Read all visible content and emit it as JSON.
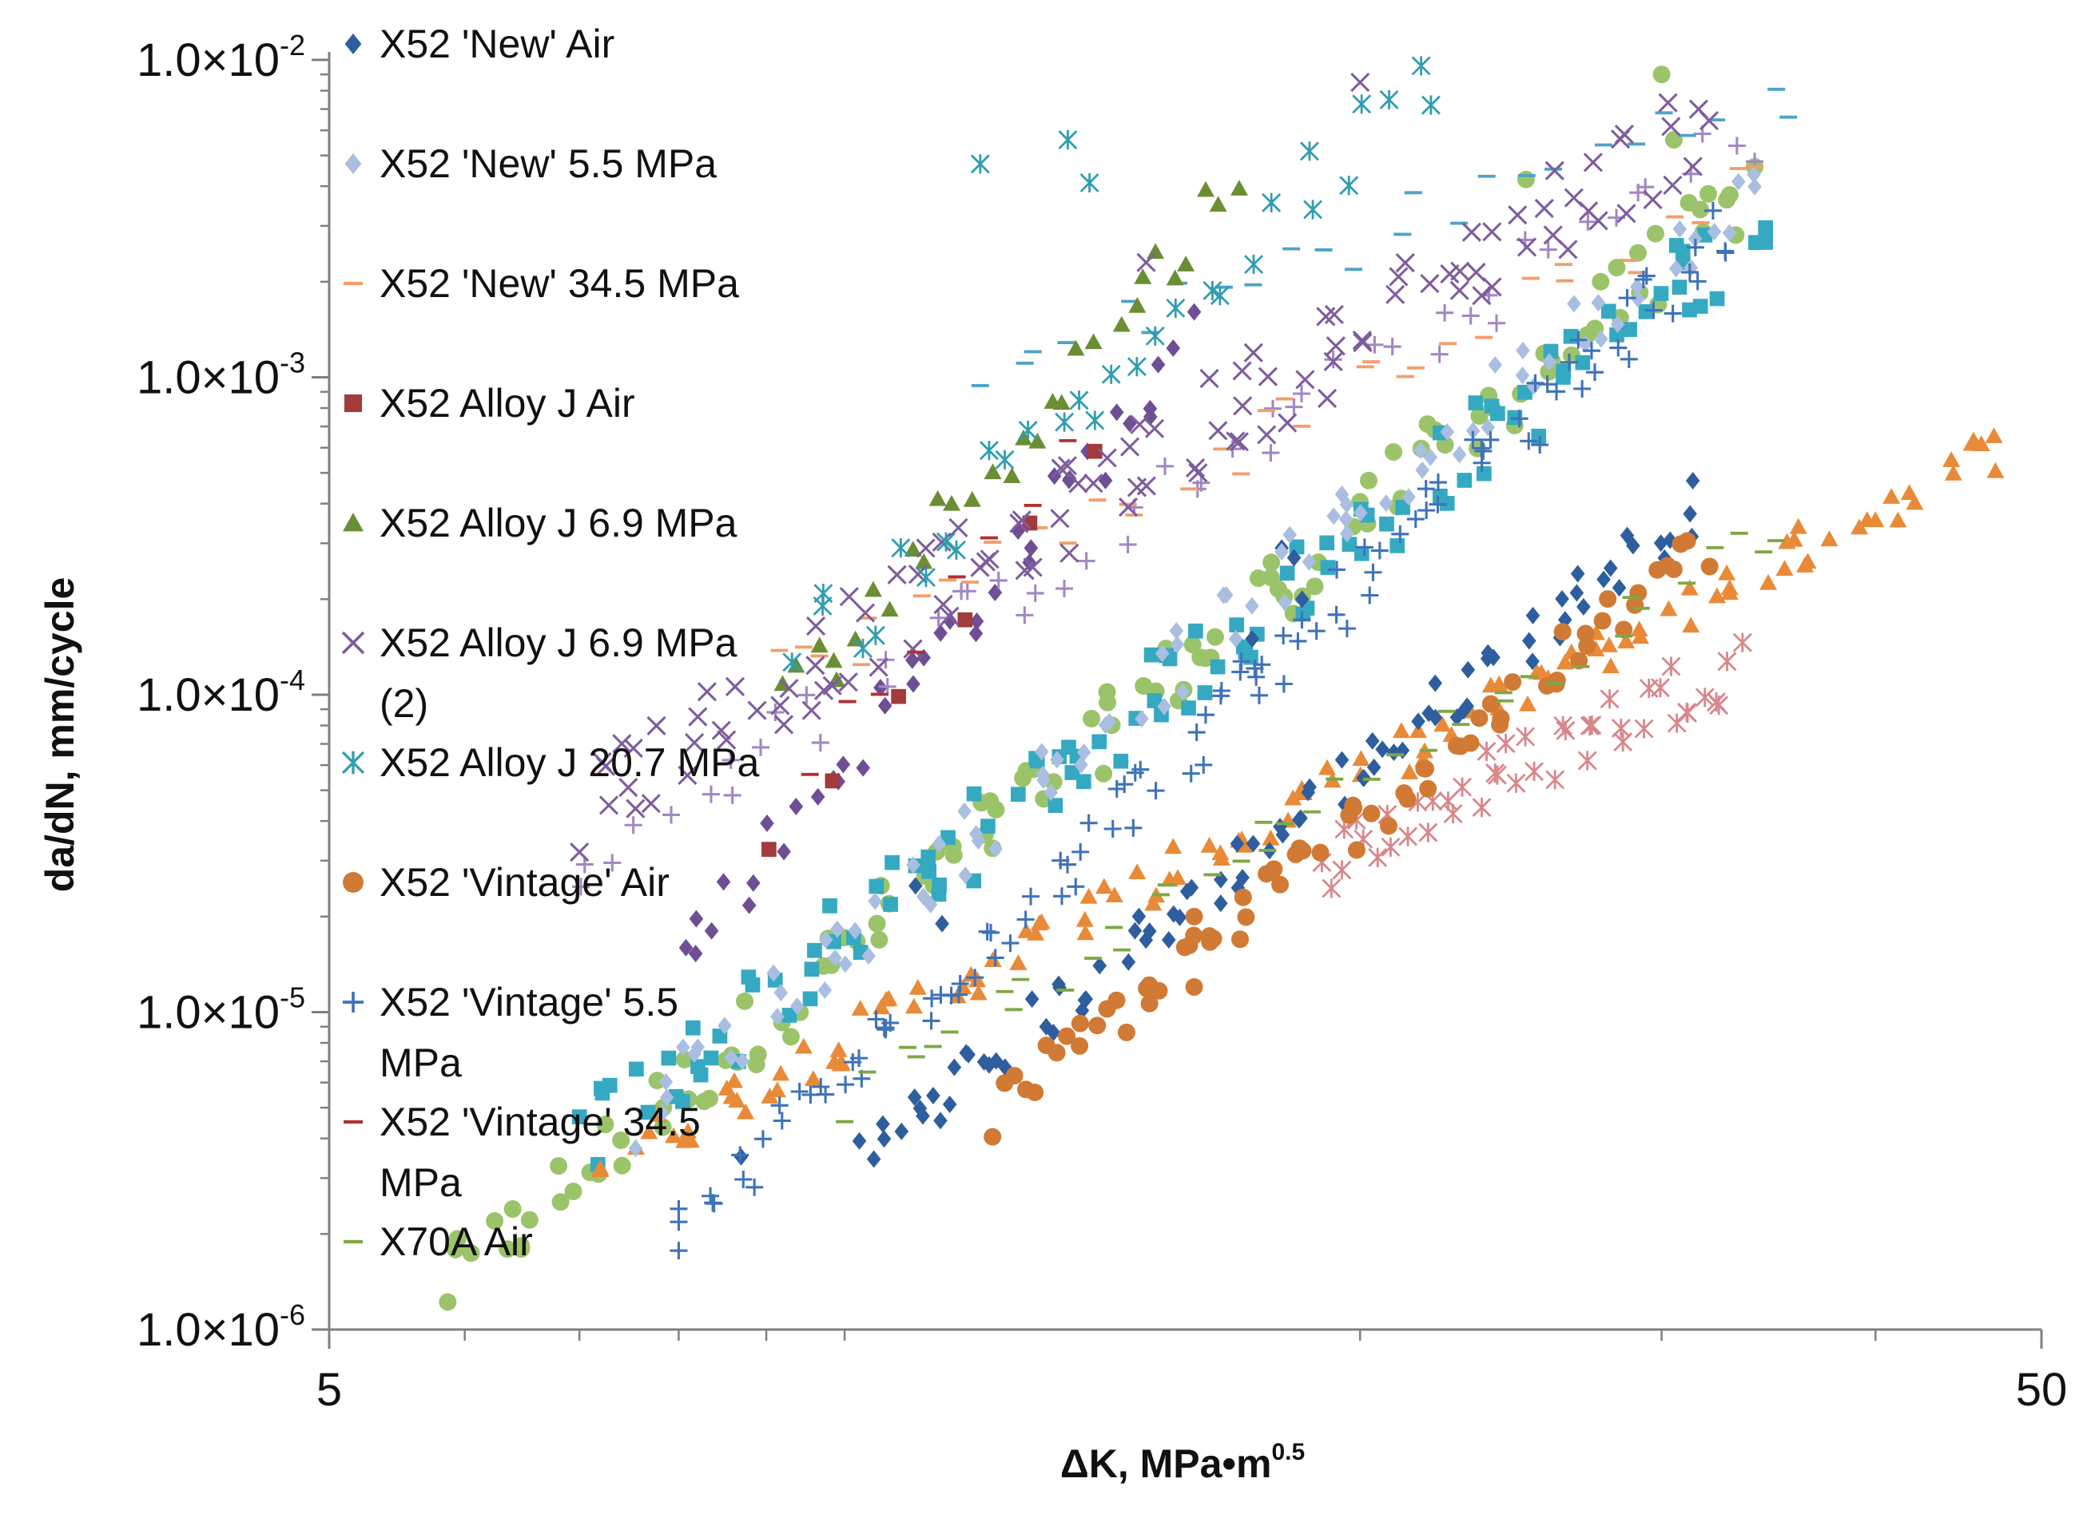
{
  "chart_data": {
    "type": "scatter",
    "title": "",
    "xlabel": "ΔK, MPa•m",
    "xlabel_sup": "0.5",
    "ylabel": "da/dN, mm/cycle",
    "x_scale": "log",
    "y_scale": "log",
    "xlim": [
      5,
      50
    ],
    "ylim": [
      1e-06,
      0.01
    ],
    "x_ticks": [
      {
        "value": 5,
        "label": "5"
      },
      {
        "value": 50,
        "label": "50"
      }
    ],
    "x_minor_ticks": [
      6,
      7,
      8,
      9,
      10,
      20,
      30,
      40
    ],
    "y_ticks": [
      {
        "value": 0.01,
        "label": "1.0×10",
        "exp": "-2"
      },
      {
        "value": 0.001,
        "label": "1.0×10",
        "exp": "-3"
      },
      {
        "value": 0.0001,
        "label": "1.0×10",
        "exp": "-4"
      },
      {
        "value": 1e-05,
        "label": "1.0×10",
        "exp": "-5"
      },
      {
        "value": 1e-06,
        "label": "1.0×10",
        "exp": "-6"
      }
    ],
    "legend_position": "left, overlapping plot area",
    "series": [
      {
        "name": "X52 'New' Air",
        "marker": "diamond",
        "color": "#2E5E9E",
        "start": [
          10.2,
          3.4e-06
        ],
        "end": [
          31.5,
          0.0004
        ],
        "n": 90,
        "spread": 0.18,
        "extra": [
          [
            8.7,
            3.5e-06
          ],
          [
            11.0,
            2.5e-05
          ],
          [
            11.4,
            1.9e-05
          ],
          [
            18.0,
            0.00029
          ],
          [
            18.3,
            0.00027
          ],
          [
            18.5,
            0.0002
          ],
          [
            17.3,
            0.00015
          ]
        ]
      },
      {
        "name": "X52 'New' 5.5 MPa",
        "marker": "diamond",
        "color": "#A9BEE0",
        "start": [
          7.5,
          4.5e-06
        ],
        "end": [
          34.0,
          0.0042
        ],
        "n": 90,
        "spread": 0.22,
        "extra": []
      },
      {
        "name": "X52 'New' 34.5 MPa",
        "marker": "dash",
        "color": "#F39E6A",
        "start": [
          9.0,
          0.00011
        ],
        "end": [
          34.0,
          0.004
        ],
        "n": 35,
        "spread": 0.2,
        "extra": []
      },
      {
        "name": "X52 Alloy J Air",
        "marker": "square",
        "color": "#A23B3B",
        "start": [
          9.0,
          3e-05
        ],
        "end": [
          14.0,
          0.0006
        ],
        "n": 6,
        "spread": 0.12,
        "extra": []
      },
      {
        "name": "X52 Alloy J 6.9 MPa",
        "marker": "triangle",
        "color": "#6B8E35",
        "start": [
          9.2,
          9e-05
        ],
        "end": [
          17.0,
          0.0043
        ],
        "n": 30,
        "spread": 0.22,
        "extra": []
      },
      {
        "name": "X52 Alloy J 6.9 MPa (2)",
        "marker": "x",
        "color": "#7E5C9E",
        "start": [
          7.0,
          4.5e-05
        ],
        "end": [
          32.0,
          0.0065
        ],
        "n": 110,
        "spread": 0.3,
        "extra": [
          [
            20.0,
            0.0085
          ],
          [
            15.0,
            0.0023
          ]
        ]
      },
      {
        "name": "X52 Alloy J 20.7 MPa",
        "marker": "star",
        "color": "#2E9EAF",
        "start": [
          9.3,
          0.00012
        ],
        "end": [
          22.0,
          0.0085
        ],
        "n": 30,
        "spread": 0.3,
        "extra": [
          [
            12.0,
            0.0047
          ],
          [
            13.5,
            0.0056
          ],
          [
            13.9,
            0.0041
          ]
        ]
      },
      {
        "name": "X52 'Vintage' Air",
        "marker": "circle",
        "color": "#D07A35",
        "start": [
          12.2,
          4.8e-06
        ],
        "end": [
          32.0,
          0.0003
        ],
        "n": 70,
        "spread": 0.18,
        "extra": [
          [
            16.0,
            1.2e-05
          ],
          [
            16.0,
            2e-05
          ],
          [
            15.8,
            1.6e-05
          ]
        ]
      },
      {
        "name": "X52 'Vintage' 5.5 MPa",
        "marker": "plus",
        "color": "#3F72B8",
        "start": [
          8.0,
          2e-06
        ],
        "end": [
          33.0,
          0.003
        ],
        "n": 110,
        "spread": 0.22,
        "extra": []
      },
      {
        "name": "X52 'Vintage' 34.5 MPa",
        "marker": "dash",
        "color": "#B23030",
        "start": [
          9.5,
          6e-05
        ],
        "end": [
          13.5,
          0.00055
        ],
        "n": 8,
        "spread": 0.12,
        "extra": []
      },
      {
        "name": "X70A Air",
        "marker": "dash",
        "color": "#7FA843",
        "start": [
          10.0,
          5e-06
        ],
        "end": [
          35.0,
          0.00035
        ],
        "n": 40,
        "spread": 0.15,
        "extra": []
      }
    ],
    "hidden_series": [
      {
        "name": "light green circles",
        "marker": "circle",
        "color": "#9BC46A",
        "start": [
          5.8,
          1.3e-06
        ],
        "end": [
          34.0,
          0.004
        ],
        "n": 120,
        "spread": 0.25,
        "extra": [
          [
            30.0,
            0.009
          ],
          [
            30.5,
            0.0056
          ],
          [
            25.0,
            0.0042
          ]
        ]
      },
      {
        "name": "teal squares",
        "marker": "square",
        "color": "#35A9C2",
        "start": [
          7.0,
          3.8e-06
        ],
        "end": [
          34.5,
          0.0032
        ],
        "n": 110,
        "spread": 0.28,
        "extra": []
      },
      {
        "name": "orange triangles",
        "marker": "triangle",
        "color": "#E88A38",
        "start": [
          7.2,
          3.3e-06
        ],
        "end": [
          47.0,
          0.0006
        ],
        "n": 120,
        "spread": 0.15,
        "extra": []
      },
      {
        "name": "pink asterisks",
        "marker": "star",
        "color": "#D9868A",
        "start": [
          19.0,
          3e-05
        ],
        "end": [
          33.5,
          0.00013
        ],
        "n": 45,
        "spread": 0.22,
        "extra": []
      },
      {
        "name": "dark purple diamonds",
        "marker": "diamond",
        "color": "#6E4E94",
        "start": [
          8.0,
          1.5e-05
        ],
        "end": [
          16.0,
          0.0013
        ],
        "n": 40,
        "spread": 0.22,
        "extra": []
      },
      {
        "name": "light purple plus",
        "marker": "plus",
        "color": "#A287C4",
        "start": [
          7.0,
          3e-05
        ],
        "end": [
          34.0,
          0.006
        ],
        "n": 50,
        "spread": 0.22,
        "extra": []
      },
      {
        "name": "blue dashes",
        "marker": "dash",
        "color": "#4DA3C9",
        "start": [
          12.0,
          0.001
        ],
        "end": [
          36.0,
          0.0085
        ],
        "n": 25,
        "spread": 0.2,
        "extra": []
      }
    ]
  },
  "legend": {
    "items": [
      {
        "label": "X52 'New' Air",
        "marker": "diamond",
        "color": "#2E5E9E"
      },
      {
        "label": "X52 'New' 5.5 MPa",
        "marker": "diamond",
        "color": "#A9BEE0"
      },
      {
        "label": "X52 'New' 34.5 MPa",
        "marker": "dash",
        "color": "#F39E6A"
      },
      {
        "label": "X52 Alloy J Air",
        "marker": "square",
        "color": "#A23B3B"
      },
      {
        "label": "X52 Alloy J 6.9 MPa",
        "marker": "triangle",
        "color": "#6B8E35"
      },
      {
        "label": "X52 Alloy J 6.9 MPa",
        "label2": "(2)",
        "marker": "x",
        "color": "#7E5C9E"
      },
      {
        "label": "X52 Alloy J 20.7 MPa",
        "marker": "star",
        "color": "#2E9EAF"
      },
      {
        "label": "X52 'Vintage' Air",
        "marker": "circle",
        "color": "#D07A35"
      },
      {
        "label": "X52 'Vintage' 5.5",
        "label2": "MPa",
        "marker": "plus",
        "color": "#3F72B8"
      },
      {
        "label": "X52 'Vintage' 34.5",
        "label2": "MPa",
        "marker": "dash",
        "color": "#B23030"
      },
      {
        "label": "X70A Air",
        "marker": "dash",
        "color": "#7FA843"
      }
    ]
  }
}
